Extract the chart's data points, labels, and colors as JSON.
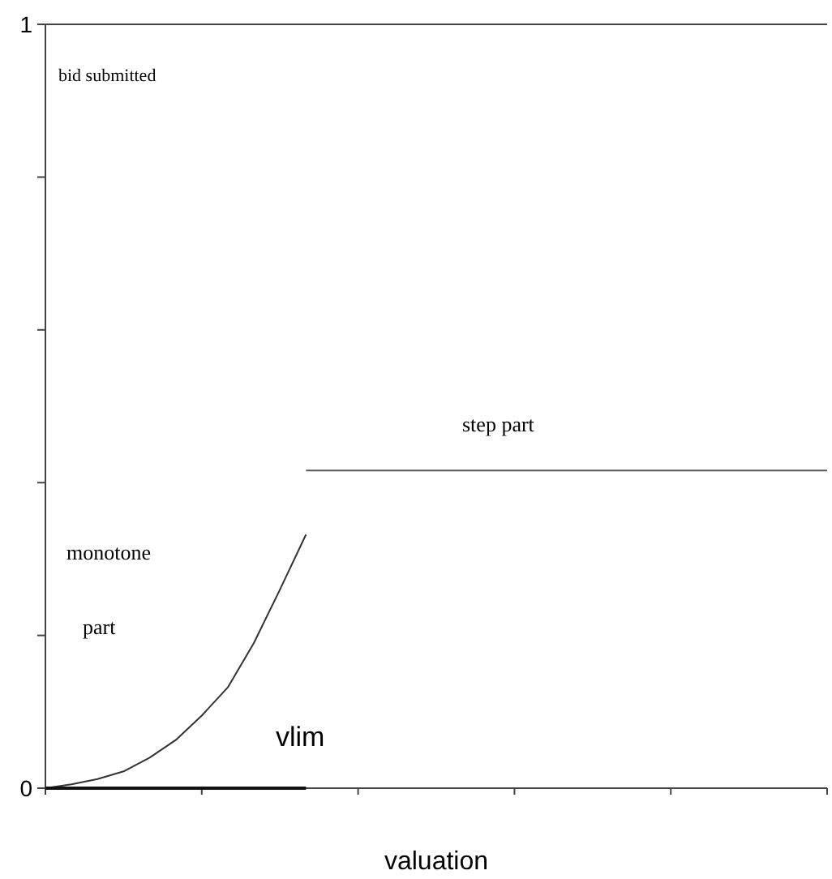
{
  "chart_data": {
    "type": "line",
    "xlabel": "valuation",
    "categories": [
      null,
      null,
      null,
      null,
      null,
      null,
      null,
      null,
      null,
      null,
      null,
      null,
      null,
      null,
      null,
      null,
      null,
      null,
      null,
      null,
      null,
      null,
      null,
      null,
      null,
      null,
      null,
      null,
      null,
      null,
      null
    ],
    "ylim": [
      0,
      1
    ],
    "yticks": [
      0,
      {
        "value": 0.2,
        "label": null
      },
      {
        "value": 0.4,
        "label": null
      },
      {
        "value": 0.6,
        "label": null
      },
      {
        "value": 0.8,
        "label": null
      },
      1
    ],
    "series": [
      {
        "color": "#333333",
        "values": [
          0,
          0.005,
          0.012,
          0.022,
          0.04,
          0.063,
          0.095,
          0.132,
          0.19,
          0.26,
          0.332,
          null,
          null,
          null,
          null,
          null,
          null,
          null,
          null,
          null,
          null,
          null,
          null,
          null,
          null,
          null,
          null,
          null,
          null,
          null,
          null
        ]
      },
      {
        "color": "#555555",
        "values": [
          null,
          null,
          null,
          null,
          null,
          null,
          null,
          null,
          null,
          null,
          0.416,
          0.416,
          0.416,
          0.416,
          0.416,
          0.416,
          0.416,
          0.416,
          0.416,
          0.416,
          0.416,
          0.416,
          0.416,
          0.416,
          0.416,
          0.416,
          0.416,
          0.416,
          0.416,
          0.416,
          0.416
        ]
      },
      {
        "color": "#111111",
        "values": [
          0,
          0,
          0,
          0,
          0,
          0,
          0,
          0,
          0,
          0,
          0,
          null,
          null,
          null,
          null,
          null,
          null,
          null,
          null,
          null,
          null,
          null,
          null,
          null,
          null,
          null,
          null,
          null,
          null,
          null,
          null
        ]
      }
    ],
    "annotations": [
      "bid submitted",
      "monotone",
      "part",
      "step part",
      "vlim"
    ]
  }
}
